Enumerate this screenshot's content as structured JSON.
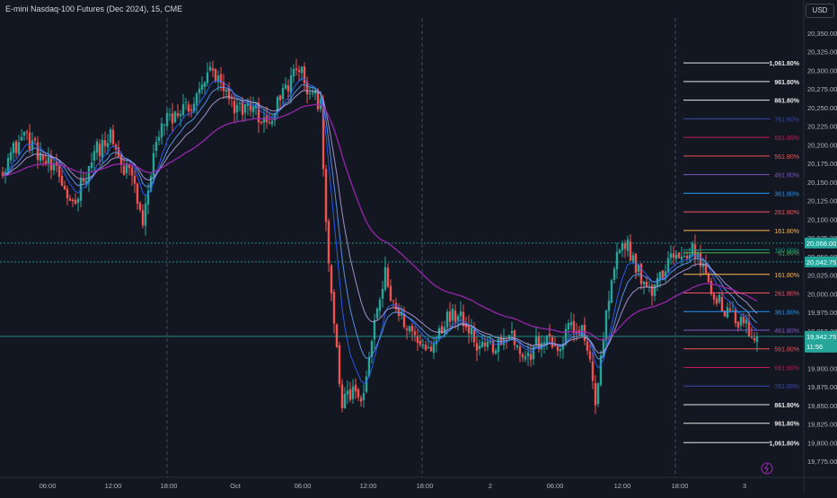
{
  "title": "E-mini Nasdaq-100 Futures (Dec 2024), 15, CME",
  "currency": "USD",
  "chart_data": {
    "type": "candlestick",
    "ylim": [
      19735,
      20355
    ],
    "y_ticks": [
      {
        "value": 20350,
        "label": "20,350.00"
      },
      {
        "value": 20325,
        "label": "20,325.00"
      },
      {
        "value": 20300,
        "label": "20,300.00"
      },
      {
        "value": 20275,
        "label": "20,275.00"
      },
      {
        "value": 20250,
        "label": "20,250.00"
      },
      {
        "value": 20225,
        "label": "20,225.00"
      },
      {
        "value": 20200,
        "label": "20,200.00"
      },
      {
        "value": 20175,
        "label": "20,175.00"
      },
      {
        "value": 20150,
        "label": "20,150.00"
      },
      {
        "value": 20125,
        "label": "20,125.00"
      },
      {
        "value": 20100,
        "label": "20,100.00"
      },
      {
        "value": 20075,
        "label": "20,075.00"
      },
      {
        "value": 20050,
        "label": "20,050.00"
      },
      {
        "value": 20025,
        "label": "20,025.00"
      },
      {
        "value": 20000,
        "label": "20,000.00"
      },
      {
        "value": 19975,
        "label": "19,975.00"
      },
      {
        "value": 19950,
        "label": "19,950.00"
      },
      {
        "value": 19925,
        "label": "19,925.00"
      },
      {
        "value": 19900,
        "label": "19,900.00"
      },
      {
        "value": 19875,
        "label": "19,875.00"
      },
      {
        "value": 19850,
        "label": "19,850.00"
      },
      {
        "value": 19825,
        "label": "19,825.00"
      },
      {
        "value": 19800,
        "label": "19,800.00"
      },
      {
        "value": 19775,
        "label": "19,775.00"
      }
    ],
    "x_ticks": [
      "06:00",
      "12:00",
      "18:00",
      "Oct",
      "06:00",
      "12:00",
      "18:00",
      "2",
      "06:00",
      "12:00",
      "18:00",
      "3"
    ],
    "session_breaks": [
      "18:00",
      "18:00",
      "18:00"
    ],
    "price_markers": [
      {
        "value": 20068.0,
        "label": "20,068.00",
        "color": "#26a69a",
        "text_color": "#ffffff",
        "line": "dotted"
      },
      {
        "value": 20042.75,
        "label": "20,042.75",
        "color": "#26a69a",
        "text_color": "#ffffff",
        "line": "dotted"
      },
      {
        "value": 19942.75,
        "label": "19,942.75",
        "sublabel": "11:56",
        "color": "#26a69a",
        "text_color": "#ffffff",
        "line": "solid"
      }
    ],
    "fib_upper": [
      {
        "label": "1,061.80%",
        "value": 20310,
        "color": "#e6e6e6"
      },
      {
        "label": "961.80%",
        "value": 20285,
        "color": "#e6e6e6"
      },
      {
        "label": "861.80%",
        "value": 20260,
        "color": "#e6e6e6"
      },
      {
        "label": "761.80%",
        "value": 20235,
        "color": "#3949ab"
      },
      {
        "label": "661.80%",
        "value": 20210,
        "color": "#c2185b"
      },
      {
        "label": "561.80%",
        "value": 20185,
        "color": "#ef5350"
      },
      {
        "label": "461.80%",
        "value": 20160,
        "color": "#7e57c2"
      },
      {
        "label": "361.80%",
        "value": 20135,
        "color": "#2196f3"
      },
      {
        "label": "261.80%",
        "value": 20110,
        "color": "#f7525f"
      },
      {
        "label": "161.80%",
        "value": 20085,
        "color": "#ffb74d"
      },
      {
        "label": "100.00%",
        "value": 20059,
        "color": "#089981"
      },
      {
        "label": "61.80%",
        "value": 20055,
        "color": "#4caf50"
      }
    ],
    "fib_lower": [
      {
        "label": "161.80%",
        "value": 20026,
        "color": "#ffb74d"
      },
      {
        "label": "261.80%",
        "value": 20001,
        "color": "#f7525f"
      },
      {
        "label": "361.80%",
        "value": 19976,
        "color": "#2196f3"
      },
      {
        "label": "461.80%",
        "value": 19951,
        "color": "#7e57c2"
      },
      {
        "label": "561.80%",
        "value": 19926,
        "color": "#ef5350"
      },
      {
        "label": "661.80%",
        "value": 19901,
        "color": "#c2185b"
      },
      {
        "label": "761.80%",
        "value": 19876,
        "color": "#3949ab"
      },
      {
        "label": "861.80%",
        "value": 19851,
        "color": "#e6e6e6"
      },
      {
        "label": "961.80%",
        "value": 19826,
        "color": "#e6e6e6"
      },
      {
        "label": "1,061.80%",
        "value": 19800,
        "color": "#e6e6e6"
      }
    ],
    "close_anchors": [
      [
        0,
        20170
      ],
      [
        8,
        20215
      ],
      [
        14,
        20185
      ],
      [
        20,
        20160
      ],
      [
        26,
        20120
      ],
      [
        34,
        20190
      ],
      [
        40,
        20210
      ],
      [
        44,
        20170
      ],
      [
        48,
        20160
      ],
      [
        52,
        20090
      ],
      [
        56,
        20190
      ],
      [
        60,
        20230
      ],
      [
        66,
        20245
      ],
      [
        72,
        20260
      ],
      [
        76,
        20300
      ],
      [
        80,
        20285
      ],
      [
        86,
        20245
      ],
      [
        92,
        20255
      ],
      [
        98,
        20225
      ],
      [
        104,
        20270
      ],
      [
        110,
        20305
      ],
      [
        114,
        20265
      ],
      [
        118,
        20258
      ],
      [
        120,
        20100
      ],
      [
        123,
        19950
      ],
      [
        126,
        19850
      ],
      [
        130,
        19870
      ],
      [
        134,
        19855
      ],
      [
        138,
        19965
      ],
      [
        142,
        20025
      ],
      [
        146,
        19975
      ],
      [
        150,
        19960
      ],
      [
        154,
        19935
      ],
      [
        158,
        19925
      ],
      [
        164,
        19965
      ],
      [
        170,
        19975
      ],
      [
        176,
        19935
      ],
      [
        182,
        19930
      ],
      [
        188,
        19950
      ],
      [
        194,
        19910
      ],
      [
        200,
        19940
      ],
      [
        206,
        19925
      ],
      [
        210,
        19955
      ],
      [
        216,
        19945
      ],
      [
        220,
        19855
      ],
      [
        224,
        19970
      ],
      [
        228,
        20050
      ],
      [
        232,
        20065
      ],
      [
        236,
        20030
      ],
      [
        240,
        20000
      ],
      [
        244,
        20020
      ],
      [
        248,
        20055
      ],
      [
        252,
        20045
      ],
      [
        256,
        20060
      ],
      [
        260,
        20040
      ],
      [
        264,
        20000
      ],
      [
        268,
        19975
      ],
      [
        272,
        19965
      ],
      [
        276,
        19955
      ],
      [
        280,
        19943
      ]
    ],
    "ema_periods": [
      8,
      13,
      21,
      55
    ],
    "ema_colors": [
      "#2962ff",
      "#5b9cf6",
      "#b39ddb",
      "#9c27b0"
    ],
    "up_color": "#26a69a",
    "down_color": "#ef5350",
    "grid": false
  }
}
